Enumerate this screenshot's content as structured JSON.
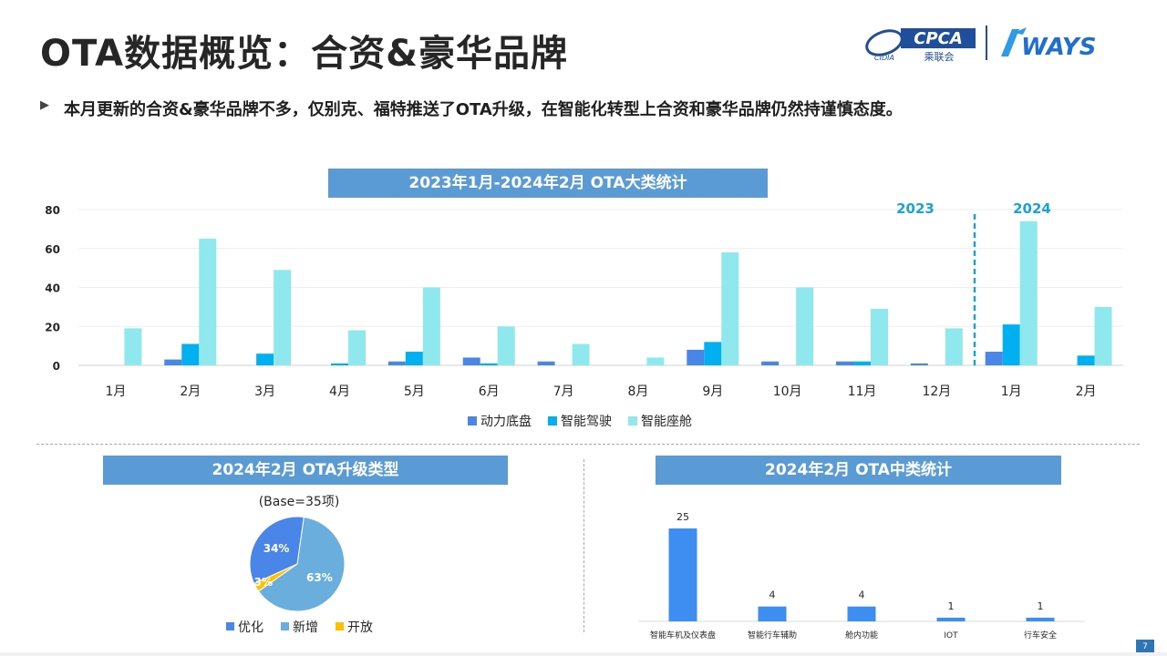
{
  "header": {
    "title": "OTA数据概览：合资&豪华品牌",
    "subtitle": "本月更新的合资&豪华品牌不多，仅别克、福特推送了OTA升级，在智能化转型上合资和豪华品牌仍然持谨慎态度。",
    "bullet_icon": "triangle-right-icon",
    "logos": {
      "cpca_text": "CPCA",
      "cpca_sub": "乘联会",
      "cpca_mark": "CIDIA",
      "ways_text": "WAYS"
    }
  },
  "colors": {
    "banner": "#5b9bd5",
    "dynamic": "#4a86e8",
    "adas": "#00b0f0",
    "cockpit": "#8ee8ee",
    "pie_new": "#6aaede",
    "pie_open": "#ffc000",
    "bar_mid": "#3d8ef0",
    "year_label": "#1aa3d8"
  },
  "main_chart": {
    "banner": "2023年1月-2024年2月 OTA大类统计",
    "year_2023": "2023",
    "year_2024": "2024",
    "chart_data": {
      "type": "bar",
      "categories": [
        "1月",
        "2月",
        "3月",
        "4月",
        "5月",
        "6月",
        "7月",
        "8月",
        "9月",
        "10月",
        "11月",
        "12月",
        "1月",
        "2月"
      ],
      "series": [
        {
          "name": "动力底盘",
          "values": [
            0,
            3,
            0,
            0,
            2,
            4,
            2,
            0,
            8,
            2,
            2,
            1,
            7,
            0
          ]
        },
        {
          "name": "智能驾驶",
          "values": [
            0,
            11,
            6,
            1,
            7,
            1,
            0,
            0,
            12,
            0,
            2,
            0,
            21,
            5
          ]
        },
        {
          "name": "智能座舱",
          "values": [
            19,
            65,
            49,
            18,
            40,
            20,
            11,
            4,
            58,
            40,
            29,
            19,
            74,
            30
          ]
        }
      ],
      "yticks": [
        0,
        20,
        40,
        60,
        80
      ],
      "ylim": [
        0,
        80
      ],
      "legend": "bottom",
      "grid": true
    }
  },
  "pie_chart": {
    "banner": "2024年2月 OTA升级类型",
    "base_note": "(Base=35项)",
    "chart_data": {
      "type": "pie",
      "slices": [
        {
          "name": "优化",
          "value": 34,
          "label": "34%"
        },
        {
          "name": "新增",
          "value": 63,
          "label": "63%"
        },
        {
          "name": "开放",
          "value": 3,
          "label": "3%"
        }
      ],
      "legend": "bottom"
    }
  },
  "mid_chart": {
    "banner": "2024年2月 OTA中类统计",
    "chart_data": {
      "type": "bar",
      "categories": [
        "智能车机及仪表盘",
        "智能行车辅助",
        "舱内功能",
        "IOT",
        "行车安全"
      ],
      "values": [
        25,
        4,
        4,
        1,
        1
      ],
      "ylim": [
        0,
        25
      ]
    }
  },
  "footer": {
    "page_number": "7"
  }
}
